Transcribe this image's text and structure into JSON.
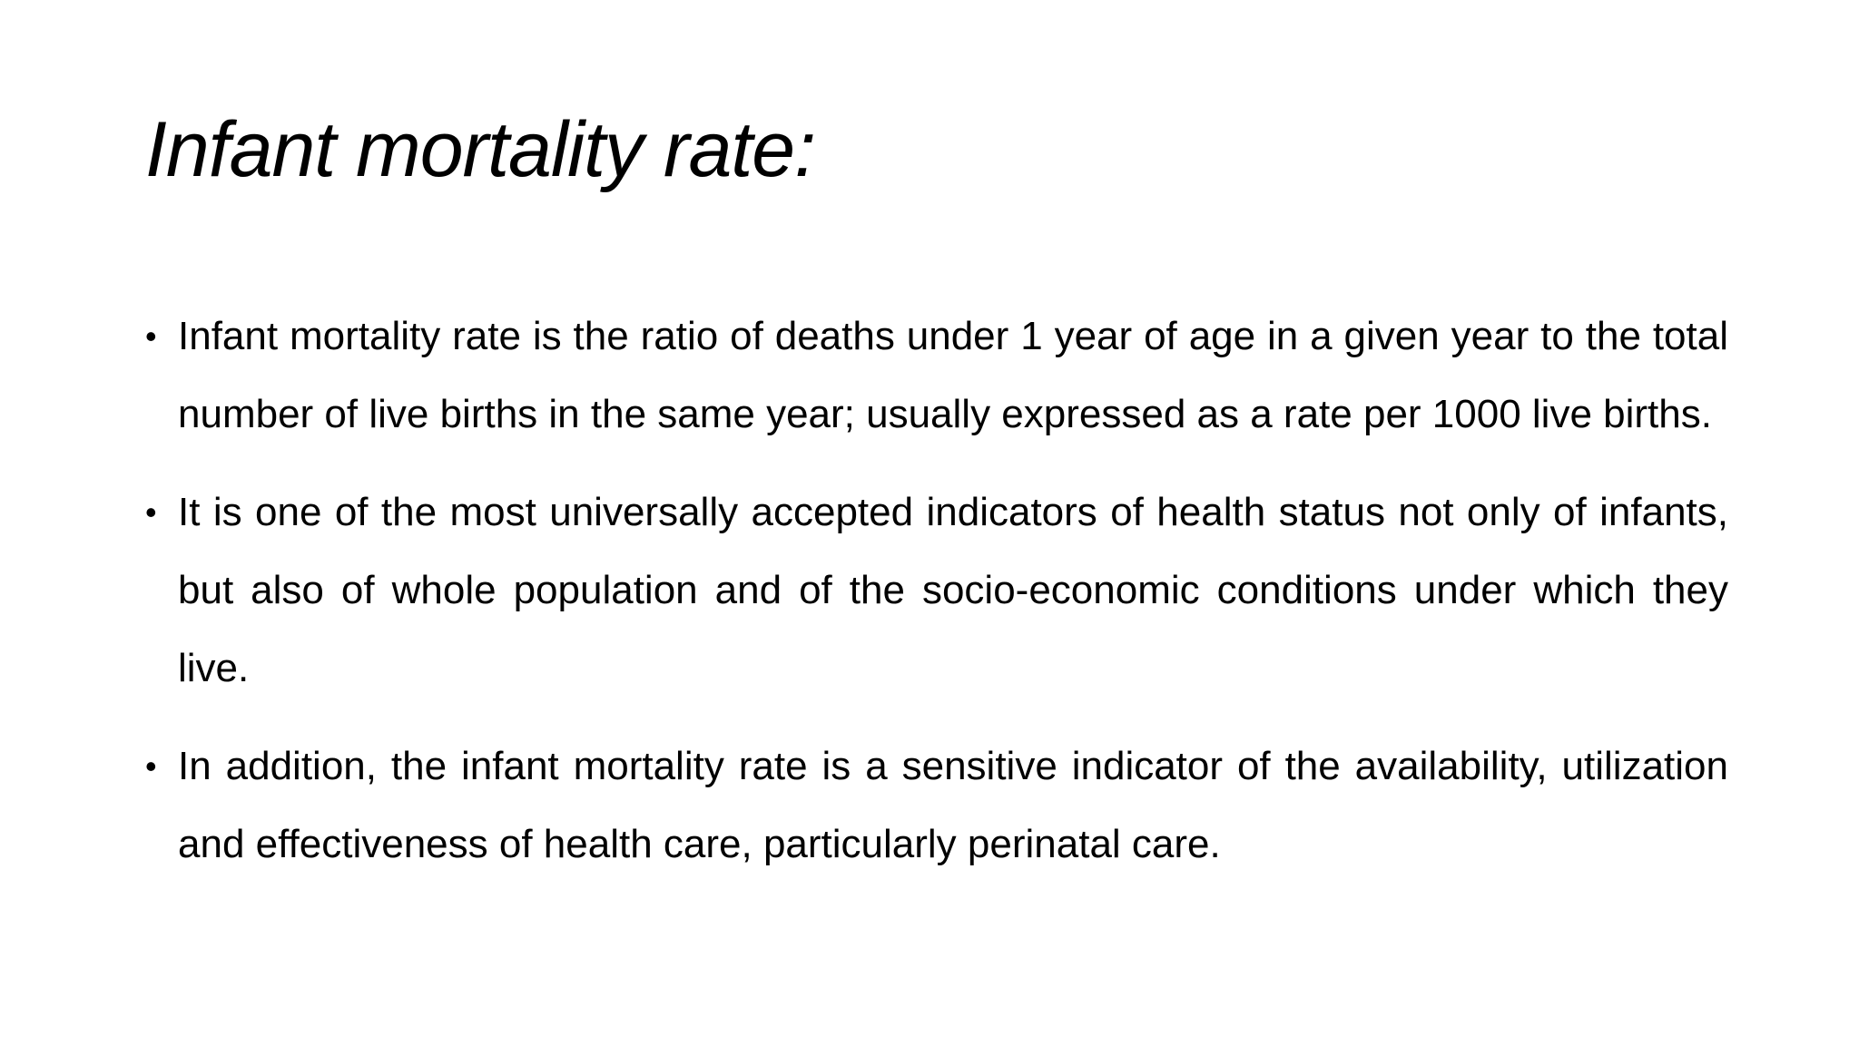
{
  "slide": {
    "title": "Infant mortality rate:",
    "bullets": [
      {
        "marker": "•",
        "text": "Infant mortality rate is the ratio of deaths under 1 year of age in a given year to the total number of live births in the same year; usually expressed as a rate per 1000 live births."
      },
      {
        "marker": "•",
        "text": "It is one of the most universally accepted indicators of health status not only of infants, but also of whole population and of the socio-economic conditions under which they live."
      },
      {
        "marker": "•",
        "text": "In addition, the infant mortality rate is a sensitive indicator of the availability, utilization and effectiveness of health care, particularly perinatal care."
      }
    ]
  }
}
